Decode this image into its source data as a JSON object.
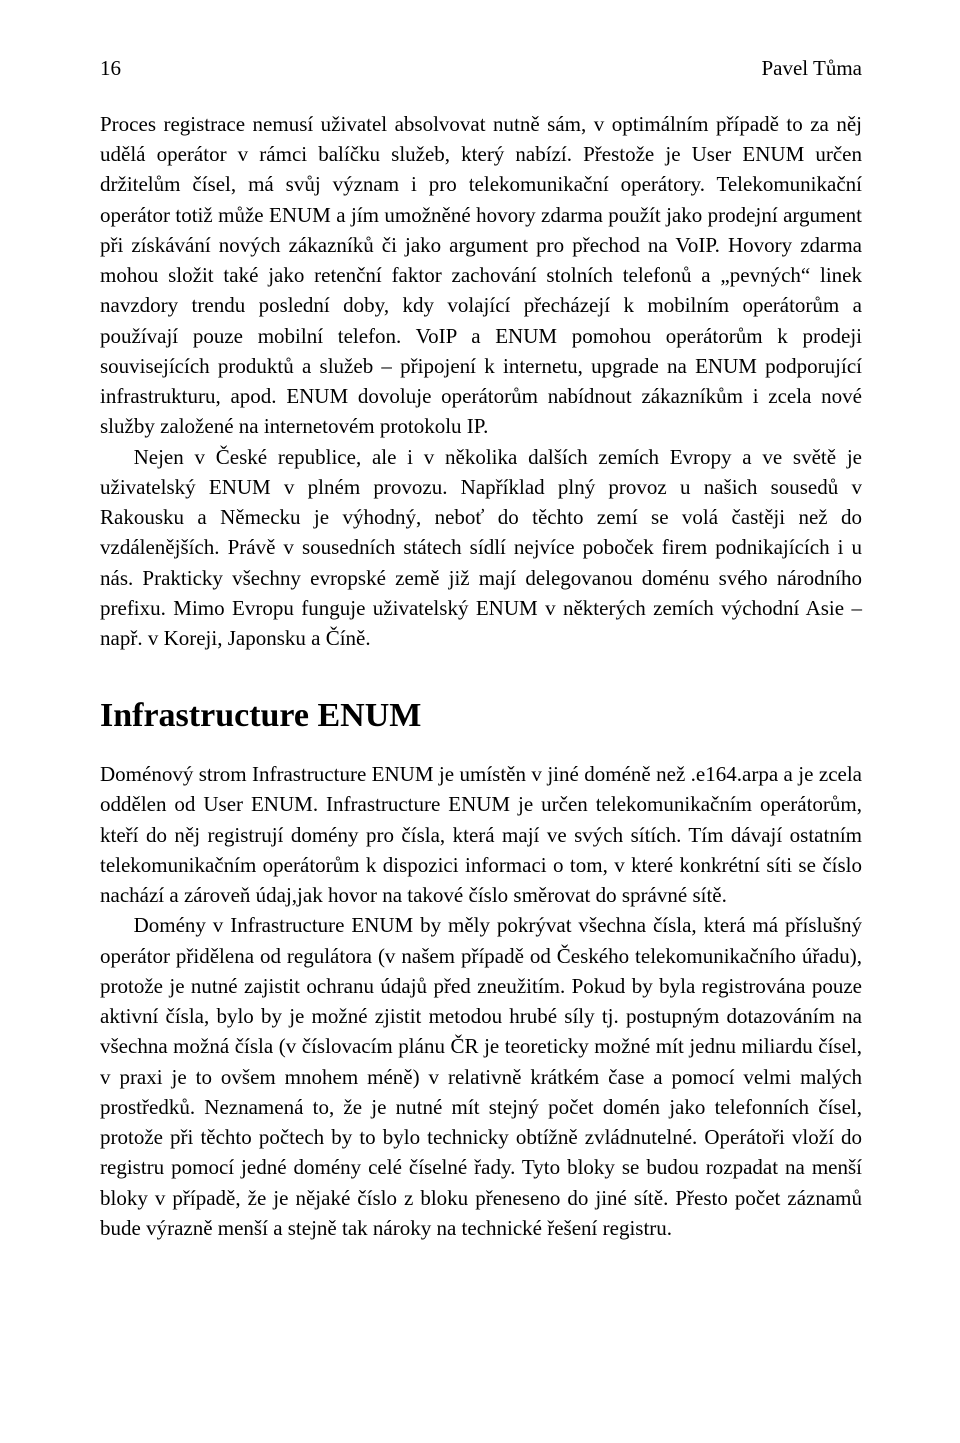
{
  "header": {
    "page_number": "16",
    "author": "Pavel Tůma"
  },
  "paragraphs": {
    "p1": "Proces registrace nemusí uživatel absolvovat nutně sám, v optimálním případě to za něj udělá operátor v rámci balíčku služeb, který nabízí. Přestože je User ENUM určen držitelům čísel, má svůj význam i pro telekomunikační operátory. Telekomunikační operátor totiž může ENUM a jím umožněné hovory zdarma použít jako prodejní argument při získávání nových zákazníků či jako argument pro přechod na VoIP. Hovory zdarma mohou složit také jako retenční faktor zachování stolních telefonů a „pevných“ linek navzdory trendu poslední doby, kdy volající přecházejí k mobilním operátorům a používají pouze mobilní telefon. VoIP a ENUM pomohou operátorům k prodeji souvisejících produktů a služeb – připojení k internetu, upgrade na ENUM podporující infrastrukturu, apod. ENUM dovoluje operátorům nabídnout zákazníkům i zcela nové služby založené na internetovém protokolu IP.",
    "p2": "Nejen v České republice, ale i v několika dalších zemích Evropy a ve světě je uživatelský ENUM v plném provozu. Například plný provoz u našich sousedů v Rakousku a Německu je výhodný, neboť do těchto zemí se volá častěji než do vzdálenějších. Právě v sousedních státech sídlí nejvíce poboček firem podnikajících i u nás. Prakticky všechny evropské země již mají delegovanou doménu svého národního prefixu. Mimo Evropu funguje uživatelský ENUM v některých zemích východní Asie – např. v Koreji, Japonsku a Číně.",
    "p3": "Doménový strom Infrastructure ENUM je umístěn v jiné doméně než .e164.arpa a je zcela oddělen od User ENUM. Infrastructure ENUM je určen telekomunikačním operátorům, kteří do něj registrují domény pro čísla, která mají ve svých sítích. Tím dávají ostatním telekomunikačním operátorům k dispozici informaci o tom, v které konkrétní síti se číslo nachází a zároveň údaj,jak hovor na takové číslo směrovat do správné sítě.",
    "p4": "Domény v Infrastructure ENUM by měly pokrývat všechna čísla, která má příslušný operátor přidělena od regulátora (v našem případě od Českého telekomunikačního úřadu), protože je nutné zajistit ochranu údajů před zneužitím. Pokud by byla registrována pouze aktivní čísla, bylo by je možné zjistit metodou hrubé síly tj. postupným dotazováním na všechna možná čísla (v číslovacím plánu ČR je teoreticky možné mít jednu miliardu čísel, v praxi je to ovšem mnohem méně) v relativně krátkém čase a pomocí velmi malých prostředků. Neznamená to, že je nutné mít stejný počet domén jako telefonních čísel, protože při těchto počtech by to bylo technicky obtížně zvládnutelné. Operátoři vloží do registru pomocí jedné domény celé číselné řady. Tyto bloky se budou rozpadat na menší bloky v případě, že je nějaké číslo z bloku přeneseno do jiné sítě. Přesto počet záznamů bude výrazně menší a stejně tak nároky na technické řešení registru."
  },
  "heading": "Infrastructure ENUM"
}
